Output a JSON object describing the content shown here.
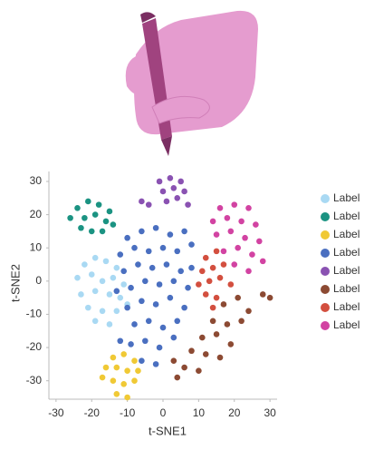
{
  "chart_data": {
    "type": "scatter",
    "xlabel": "t-SNE1",
    "ylabel": "t-SNE2",
    "xlim": [
      -32,
      32
    ],
    "xticks": [
      -30,
      -20,
      -10,
      0,
      10,
      20,
      30
    ],
    "ylim": [
      -35,
      33
    ],
    "yticks": [
      -30,
      -20,
      -10,
      0,
      10,
      20,
      30
    ],
    "series": [
      {
        "name": "Label",
        "color": "#a9d9f3",
        "x": [
          -22,
          -19,
          -16,
          -13,
          -24,
          -20,
          -17,
          -14,
          -11,
          -23,
          -19,
          -15,
          -12,
          -21,
          -17,
          -13,
          -10,
          -19,
          -15
        ],
        "values": [
          5,
          7,
          6,
          4,
          1,
          2,
          0,
          1,
          -1,
          -4,
          -3,
          -4,
          -5,
          -8,
          -9,
          -9,
          -7,
          -12,
          -13
        ]
      },
      {
        "name": "Label",
        "color": "#1b9382",
        "x": [
          -24,
          -21,
          -18,
          -15,
          -26,
          -22,
          -19,
          -16,
          -23,
          -20,
          -17,
          -14
        ],
        "values": [
          22,
          24,
          23,
          21,
          19,
          19,
          20,
          18,
          16,
          15,
          15,
          17
        ]
      },
      {
        "name": "Label",
        "color": "#f0c935",
        "x": [
          -14,
          -11,
          -8,
          -16,
          -13,
          -10,
          -7,
          -17,
          -14,
          -11,
          -8,
          -13,
          -10
        ],
        "values": [
          -23,
          -22,
          -24,
          -26,
          -26,
          -27,
          -27,
          -29,
          -30,
          -31,
          -30,
          -34,
          -35
        ]
      },
      {
        "name": "Label",
        "color": "#4a6fc0",
        "x": [
          -10,
          -6,
          -2,
          2,
          6,
          -12,
          -8,
          -4,
          0,
          4,
          8,
          -11,
          -7,
          -3,
          1,
          5,
          -9,
          -5,
          -1,
          3,
          7,
          -10,
          -6,
          -2,
          2,
          6,
          -8,
          -4,
          0,
          4,
          -9,
          -5,
          -1,
          3,
          -6,
          -2,
          -12,
          8,
          -13
        ],
        "values": [
          13,
          15,
          16,
          14,
          15,
          8,
          10,
          9,
          10,
          9,
          11,
          3,
          5,
          4,
          5,
          3,
          -2,
          0,
          -1,
          0,
          -2,
          -8,
          -6,
          -7,
          -5,
          -8,
          -13,
          -12,
          -14,
          -12,
          -19,
          -18,
          -20,
          -17,
          -24,
          -25,
          -18,
          4,
          -3
        ]
      },
      {
        "name": "Label",
        "color": "#8a52b2",
        "x": [
          -1,
          2,
          5,
          0,
          3,
          6,
          1,
          4,
          7,
          -6,
          -4
        ],
        "values": [
          30,
          31,
          30,
          27,
          28,
          27,
          24,
          25,
          23,
          24,
          23
        ]
      },
      {
        "name": "Label",
        "color": "#8c4a33",
        "x": [
          17,
          21,
          24,
          28,
          30,
          14,
          18,
          22,
          11,
          15,
          19,
          8,
          12,
          16,
          3,
          6,
          10,
          4
        ],
        "values": [
          -7,
          -5,
          -9,
          -4,
          -5,
          -12,
          -13,
          -12,
          -17,
          -16,
          -19,
          -21,
          -22,
          -23,
          -24,
          -26,
          -27,
          -29
        ]
      },
      {
        "name": "Label",
        "color": "#d34f3f",
        "x": [
          12,
          15,
          11,
          14,
          17,
          10,
          13,
          16,
          19,
          12,
          15,
          14
        ],
        "values": [
          7,
          9,
          3,
          4,
          5,
          -1,
          0,
          1,
          -1,
          -4,
          -5,
          -8
        ]
      },
      {
        "name": "Label",
        "color": "#d243a2",
        "x": [
          16,
          20,
          24,
          14,
          18,
          22,
          26,
          15,
          19,
          23,
          27,
          17,
          21,
          25,
          28,
          20,
          24
        ],
        "values": [
          22,
          23,
          22,
          18,
          19,
          18,
          17,
          14,
          15,
          13,
          12,
          9,
          10,
          8,
          6,
          5,
          3
        ]
      }
    ]
  }
}
